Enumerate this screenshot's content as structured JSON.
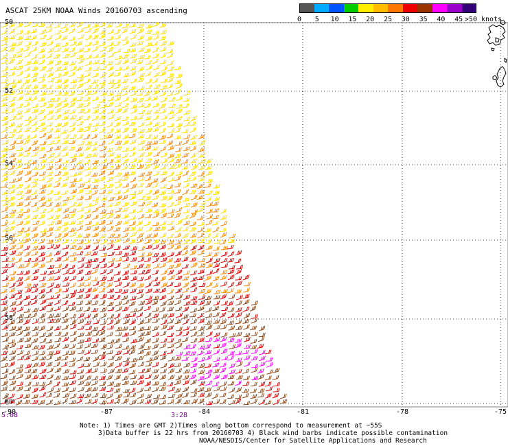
{
  "title": "ASCAT 25KM NOAA Winds 20160703 ascending",
  "colorbar": {
    "colors": [
      "#555555",
      "#00aaff",
      "#0055ff",
      "#00cc00",
      "#ffee00",
      "#ffbb00",
      "#ff7700",
      "#ee0000",
      "#993300",
      "#ff00ff",
      "#9900cc",
      "#330077"
    ],
    "labels": [
      "0",
      "5",
      "10",
      "15",
      "20",
      "25",
      "30",
      "35",
      "40",
      "45",
      ">50 knots"
    ]
  },
  "map": {
    "lat_labels": [
      "50",
      "52",
      "54",
      "56",
      "58",
      "60"
    ],
    "lon_labels": [
      "-87",
      "-84",
      "-81",
      "-78",
      "-75"
    ],
    "left_corner_label": "-90",
    "time_labels": [
      "5:08",
      "3:28"
    ]
  },
  "notes": {
    "line1": "Note: 1) Times are GMT 2)Times along bottom correspond to measurement at ~55S",
    "line2": "3)Data buffer is 22 hrs from 20160703 4) Black wind barbs indicate possible contamination",
    "line3": "NOAA/NESDIS/Center for Satellite Applications and Research"
  },
  "colors": {
    "wind_yellow": "#ffdd00",
    "wind_orange": "#ff8800",
    "wind_red": "#dd0000",
    "wind_brown": "#8b4513",
    "wind_magenta": "#ff00ff",
    "coast": "#000000"
  }
}
